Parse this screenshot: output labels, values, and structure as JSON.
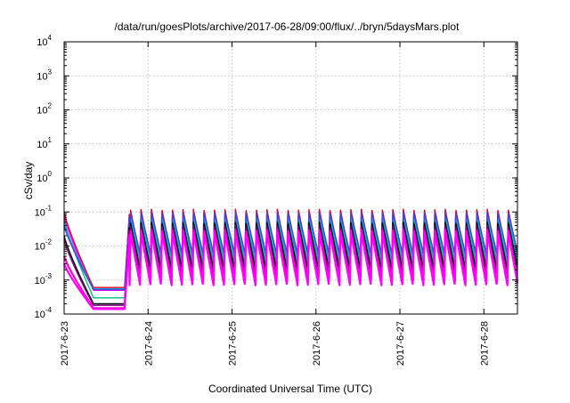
{
  "chart_data": {
    "type": "line",
    "title": "/data/run/goesPlots/archive/2017-06-28/09:00/flux/../bryn/5daysMars.plot",
    "xlabel": "Coordinated Universal Time (UTC)",
    "ylabel": "cSv/day",
    "y_scale": "log",
    "ylim": [
      0.0001,
      10000
    ],
    "xlim_days": [
      0,
      5.4
    ],
    "grid": true,
    "legend": "none",
    "x_ticks": [
      {
        "value": 0,
        "label": "2017-6-23"
      },
      {
        "value": 1,
        "label": "2017-6-24"
      },
      {
        "value": 2,
        "label": "2017-6-25"
      },
      {
        "value": 3,
        "label": "2017-6-26"
      },
      {
        "value": 4,
        "label": "2017-6-27"
      },
      {
        "value": 5,
        "label": "2017-6-28"
      }
    ],
    "y_ticks": [
      {
        "exp": -4,
        "base": "10",
        "sup": "-4"
      },
      {
        "exp": -3,
        "base": "10",
        "sup": "-3"
      },
      {
        "exp": -2,
        "base": "10",
        "sup": "-2"
      },
      {
        "exp": -1,
        "base": "10",
        "sup": "-1"
      },
      {
        "exp": 0,
        "base": "10",
        "sup": "0"
      },
      {
        "exp": 1,
        "base": "10",
        "sup": "1"
      },
      {
        "exp": 2,
        "base": "10",
        "sup": "2"
      },
      {
        "exp": 3,
        "base": "10",
        "sup": "3"
      },
      {
        "exp": 4,
        "base": "10",
        "sup": "4"
      }
    ],
    "series": [
      {
        "color": "#e0001c",
        "start": 0.1,
        "quiet_min": 0.0006,
        "peak": 0.12,
        "trough": 0.0045
      },
      {
        "color": "#ff00ff",
        "start": 0.08,
        "quiet_min": 0.0005,
        "peak": 0.095,
        "trough": 0.003
      },
      {
        "color": "#00c080",
        "start": 0.06,
        "quiet_min": 0.0003,
        "peak": 0.065,
        "trough": 0.0025
      },
      {
        "color": "#00b4e6",
        "start": 0.05,
        "quiet_min": 0.00055,
        "peak": 0.08,
        "trough": 0.004
      },
      {
        "color": "#4a40d0",
        "start": 0.04,
        "quiet_min": 0.00052,
        "peak": 0.1,
        "trough": 0.006
      },
      {
        "color": "#000000",
        "start": 0.02,
        "quiet_min": 0.0002,
        "peak": 0.05,
        "trough": 0.002
      },
      {
        "color": "#800080",
        "start": 0.015,
        "quiet_min": 0.00018,
        "peak": 0.04,
        "trough": 0.0012
      },
      {
        "color": "#ff00cc",
        "start": 0.005,
        "quiet_min": 0.00015,
        "peak": 0.03,
        "trough": 0.0008
      },
      {
        "color": "#ff00ff",
        "start": 0.003,
        "quiet_min": 0.00014,
        "peak": 0.025,
        "trough": 0.0007
      }
    ],
    "events": {
      "initial_decay_end_day": 0.35,
      "quiet_end_day": 0.72,
      "rise_end_day": 0.78,
      "cycle_period_day": 0.125
    }
  }
}
